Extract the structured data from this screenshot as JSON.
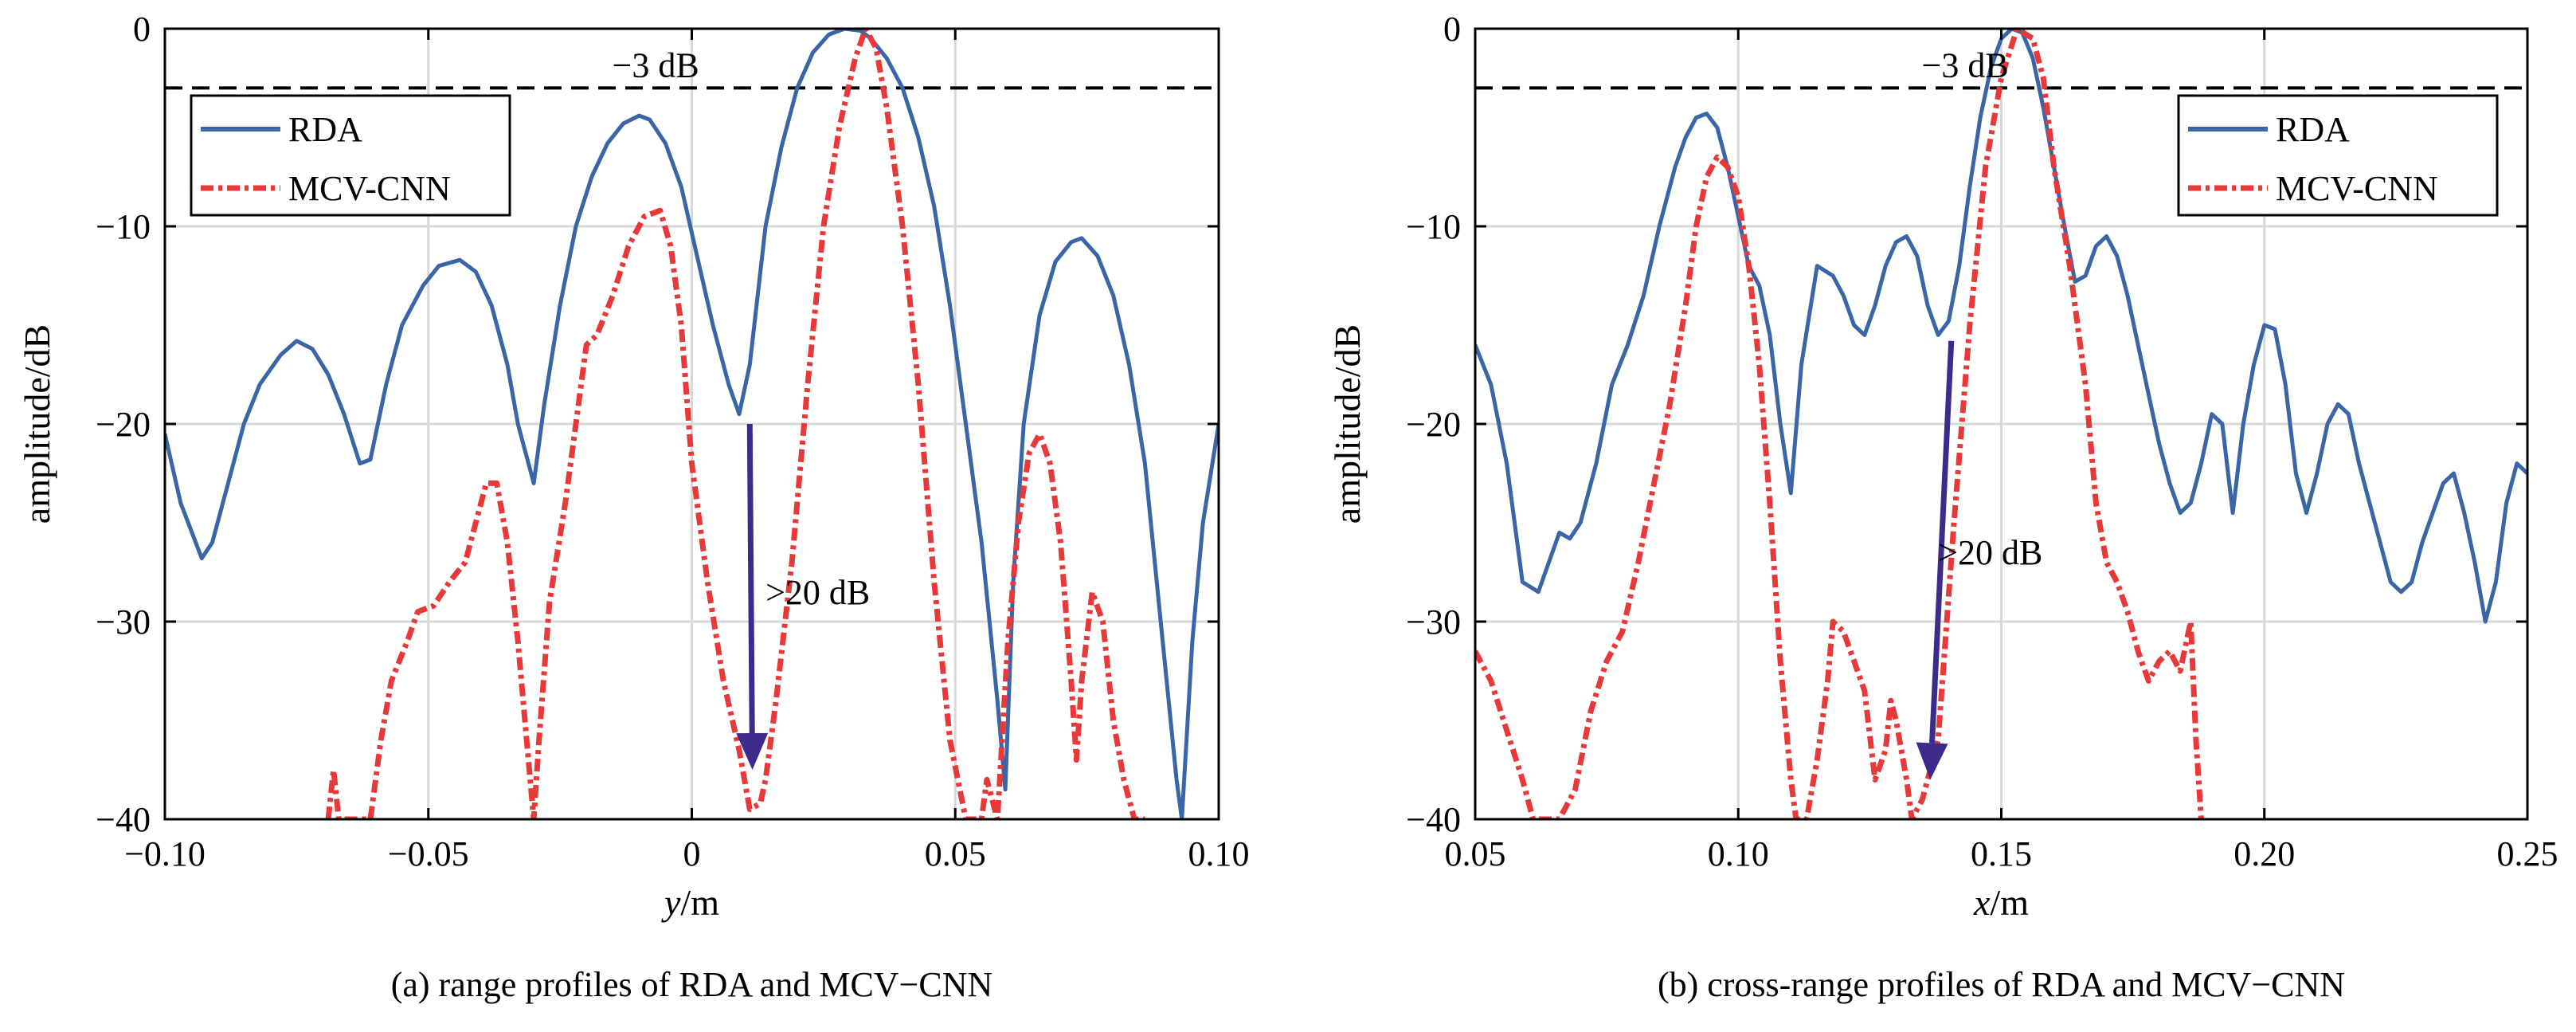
{
  "chart_data": [
    {
      "type": "line",
      "caption": "(a) range profiles of RDA and MCV−CNN",
      "xlabel_var": "y",
      "xlabel_unit": "/m",
      "ylabel": "amplitude/dB",
      "xlim": [
        -0.1,
        0.1
      ],
      "ylim": [
        -40,
        0
      ],
      "xticks": [
        "−0.10",
        "−0.05",
        "0",
        "0.05",
        "0.10"
      ],
      "xtick_values": [
        -0.1,
        -0.05,
        0,
        0.05,
        0.1
      ],
      "yticks": [
        "0",
        "−10",
        "−20",
        "−30",
        "−40"
      ],
      "ytick_values": [
        0,
        -10,
        -20,
        -30,
        -40
      ],
      "grid": true,
      "legend_position": "top-left",
      "reference_line": {
        "y": -3,
        "label": "−3 dB"
      },
      "annotation": {
        "label": ">20 dB",
        "x_start": 0.011,
        "y_start": -20,
        "x_end": 0.0115,
        "y_end": -37.5,
        "label_x": 0.014,
        "label_y": -28.5
      },
      "series": [
        {
          "name": "RDA",
          "color": "#3a66a8",
          "dash": "solid",
          "x": [
            -0.1,
            -0.097,
            -0.093,
            -0.091,
            -0.088,
            -0.085,
            -0.082,
            -0.078,
            -0.075,
            -0.072,
            -0.069,
            -0.066,
            -0.063,
            -0.061,
            -0.058,
            -0.055,
            -0.051,
            -0.048,
            -0.044,
            -0.041,
            -0.038,
            -0.035,
            -0.033,
            -0.03,
            -0.028,
            -0.025,
            -0.022,
            -0.019,
            -0.016,
            -0.013,
            -0.01,
            -0.008,
            -0.005,
            -0.002,
            0.001,
            0.004,
            0.007,
            0.009,
            0.011,
            0.014,
            0.017,
            0.02,
            0.023,
            0.026,
            0.029,
            0.032,
            0.034,
            0.037,
            0.04,
            0.043,
            0.046,
            0.049,
            0.052,
            0.055,
            0.058,
            0.0595,
            0.061,
            0.063,
            0.066,
            0.069,
            0.072,
            0.074,
            0.077,
            0.08,
            0.083,
            0.086,
            0.089,
            0.092,
            0.093,
            0.095,
            0.097,
            0.1
          ],
          "y": [
            -20.5,
            -24,
            -26.8,
            -26,
            -23,
            -20,
            -18,
            -16.5,
            -15.8,
            -16.2,
            -17.5,
            -19.5,
            -22,
            -21.8,
            -18,
            -15,
            -13,
            -12,
            -11.7,
            -12.3,
            -14,
            -17,
            -20,
            -23,
            -19,
            -14,
            -10,
            -7.5,
            -5.8,
            -4.8,
            -4.4,
            -4.6,
            -5.8,
            -8,
            -11.5,
            -15,
            -18,
            -19.5,
            -17,
            -10,
            -6,
            -3,
            -1.2,
            -0.3,
            0,
            -0.1,
            -0.5,
            -1.5,
            -3,
            -5.5,
            -9,
            -14,
            -20,
            -26,
            -34,
            -38.5,
            -28,
            -20,
            -14.5,
            -11.8,
            -10.8,
            -10.6,
            -11.5,
            -13.5,
            -17,
            -22,
            -30,
            -38,
            -40,
            -31,
            -25,
            -20
          ]
        },
        {
          "name": "MCV-CNN",
          "color": "#e8393a",
          "dash": "dash-dot",
          "x": [
            -0.069,
            -0.068,
            -0.067,
            -0.061,
            -0.059,
            -0.057,
            -0.054,
            -0.052,
            -0.049,
            -0.046,
            -0.043,
            -0.041,
            -0.039,
            -0.037,
            -0.035,
            -0.033,
            -0.031,
            -0.03,
            -0.029,
            -0.027,
            -0.024,
            -0.022,
            -0.02,
            -0.018,
            -0.015,
            -0.012,
            -0.009,
            -0.006,
            -0.004,
            -0.002,
            0.0,
            0.003,
            0.006,
            0.009,
            0.011,
            0.013,
            0.014,
            0.016,
            0.019,
            0.022,
            0.025,
            0.028,
            0.031,
            0.033,
            0.035,
            0.037,
            0.04,
            0.043,
            0.046,
            0.049,
            0.052,
            0.055,
            0.056,
            0.058,
            0.06,
            0.062,
            0.064,
            0.066,
            0.068,
            0.07,
            0.072,
            0.073,
            0.074,
            0.076,
            0.078,
            0.08,
            0.082,
            0.084,
            0.086
          ],
          "y": [
            -40,
            -37.5,
            -40,
            -40,
            -36,
            -33,
            -31,
            -29.5,
            -29.2,
            -28,
            -27,
            -25,
            -23,
            -23,
            -26,
            -31,
            -37,
            -40,
            -36,
            -29,
            -24,
            -20,
            -16,
            -15.5,
            -13.5,
            -11,
            -9.5,
            -9.2,
            -11,
            -15,
            -22,
            -28,
            -33,
            -36.5,
            -39.5,
            -39.2,
            -38,
            -34,
            -27,
            -18,
            -10,
            -5,
            -1.5,
            0,
            -1,
            -4,
            -10,
            -18,
            -28,
            -36,
            -40,
            -40,
            -38,
            -40,
            -31,
            -25,
            -21.5,
            -20.5,
            -22,
            -26,
            -33,
            -37,
            -33,
            -28.5,
            -30,
            -35,
            -38,
            -40,
            -40
          ]
        }
      ]
    },
    {
      "type": "line",
      "caption": "(b) cross-range profiles of RDA and MCV−CNN",
      "xlabel_var": "x",
      "xlabel_unit": "/m",
      "ylabel": "amplitude/dB",
      "xlim": [
        0.05,
        0.25
      ],
      "ylim": [
        -40,
        0
      ],
      "xticks": [
        "0.05",
        "0.10",
        "0.15",
        "0.20",
        "0.25"
      ],
      "xtick_values": [
        0.05,
        0.1,
        0.15,
        0.2,
        0.25
      ],
      "yticks": [
        "0",
        "−10",
        "−20",
        "−30",
        "−40"
      ],
      "ytick_values": [
        0,
        -10,
        -20,
        -30,
        -40
      ],
      "grid": true,
      "legend_position": "top-right",
      "reference_line": {
        "y": -3,
        "label": "−3 dB"
      },
      "annotation": {
        "label": ">20 dB",
        "x_start": 0.1405,
        "y_start": -15.8,
        "x_end": 0.1365,
        "y_end": -38,
        "label_x": 0.138,
        "label_y": -26.5
      },
      "series": [
        {
          "name": "RDA",
          "color": "#3a66a8",
          "dash": "solid",
          "x": [
            0.05,
            0.053,
            0.056,
            0.059,
            0.062,
            0.064,
            0.066,
            0.068,
            0.07,
            0.073,
            0.076,
            0.079,
            0.082,
            0.085,
            0.088,
            0.09,
            0.092,
            0.094,
            0.096,
            0.098,
            0.1,
            0.102,
            0.104,
            0.106,
            0.108,
            0.11,
            0.112,
            0.115,
            0.118,
            0.12,
            0.122,
            0.124,
            0.126,
            0.128,
            0.13,
            0.132,
            0.134,
            0.136,
            0.138,
            0.14,
            0.142,
            0.144,
            0.146,
            0.148,
            0.15,
            0.152,
            0.154,
            0.156,
            0.158,
            0.16,
            0.162,
            0.164,
            0.166,
            0.168,
            0.17,
            0.172,
            0.174,
            0.176,
            0.178,
            0.18,
            0.182,
            0.184,
            0.186,
            0.188,
            0.19,
            0.192,
            0.194,
            0.196,
            0.198,
            0.2,
            0.202,
            0.204,
            0.206,
            0.208,
            0.21,
            0.212,
            0.214,
            0.216,
            0.218,
            0.22,
            0.222,
            0.224,
            0.226,
            0.228,
            0.23,
            0.232,
            0.234,
            0.236,
            0.238,
            0.24,
            0.242,
            0.244,
            0.246,
            0.248,
            0.25
          ],
          "y": [
            -16,
            -18,
            -22,
            -28,
            -28.5,
            -27,
            -25.5,
            -25.8,
            -25,
            -22,
            -18,
            -16,
            -13.5,
            -10,
            -7,
            -5.5,
            -4.5,
            -4.3,
            -5,
            -7,
            -9.5,
            -12,
            -13,
            -15.5,
            -20,
            -23.5,
            -17,
            -12,
            -12.5,
            -13.5,
            -15,
            -15.5,
            -14,
            -12,
            -10.8,
            -10.5,
            -11.5,
            -14,
            -15.5,
            -14.8,
            -12,
            -8,
            -4.5,
            -2,
            -0.5,
            0,
            -0.2,
            -1.5,
            -4,
            -7,
            -10,
            -12.8,
            -12.5,
            -11,
            -10.5,
            -11.5,
            -13.5,
            -16,
            -18.5,
            -21,
            -23,
            -24.5,
            -24,
            -22,
            -19.5,
            -20,
            -24.5,
            -20,
            -17,
            -15,
            -15.2,
            -18,
            -22.5,
            -24.5,
            -22.5,
            -20,
            -19,
            -19.5,
            -22,
            -24,
            -26,
            -28,
            -28.5,
            -28,
            -26,
            -24.5,
            -23,
            -22.5,
            -24.5,
            -27,
            -30,
            -28,
            -24,
            -22,
            -22.5
          ]
        },
        {
          "name": "MCV-CNN",
          "color": "#e8393a",
          "dash": "dash-dot",
          "x": [
            0.05,
            0.053,
            0.056,
            0.059,
            0.061,
            0.066,
            0.069,
            0.072,
            0.075,
            0.078,
            0.081,
            0.084,
            0.087,
            0.09,
            0.092,
            0.094,
            0.096,
            0.098,
            0.1,
            0.102,
            0.104,
            0.106,
            0.108,
            0.11,
            0.111,
            0.113,
            0.115,
            0.117,
            0.118,
            0.12,
            0.122,
            0.124,
            0.126,
            0.128,
            0.129,
            0.13,
            0.132,
            0.133,
            0.135,
            0.136,
            0.138,
            0.141,
            0.144,
            0.147,
            0.15,
            0.153,
            0.156,
            0.158,
            0.16,
            0.163,
            0.166,
            0.168,
            0.17,
            0.172,
            0.174,
            0.176,
            0.178,
            0.18,
            0.182,
            0.184,
            0.186,
            0.187,
            0.188
          ],
          "y": [
            -31.5,
            -33,
            -35.5,
            -38,
            -40,
            -40,
            -38.5,
            -34.5,
            -32,
            -30.5,
            -27,
            -23,
            -19,
            -14,
            -10,
            -7.5,
            -6.5,
            -7,
            -8.5,
            -12,
            -17,
            -24,
            -32,
            -38,
            -40,
            -40,
            -37,
            -33,
            -30,
            -30.5,
            -32,
            -33.5,
            -38,
            -36.5,
            -34,
            -35,
            -38,
            -40,
            -39,
            -38,
            -36,
            -25,
            -15,
            -7,
            -2.5,
            0,
            -0.5,
            -2.5,
            -7,
            -12,
            -18,
            -24,
            -27,
            -28,
            -29.5,
            -31.5,
            -33,
            -32,
            -31.5,
            -32.5,
            -30,
            -36,
            -40
          ]
        }
      ]
    }
  ]
}
